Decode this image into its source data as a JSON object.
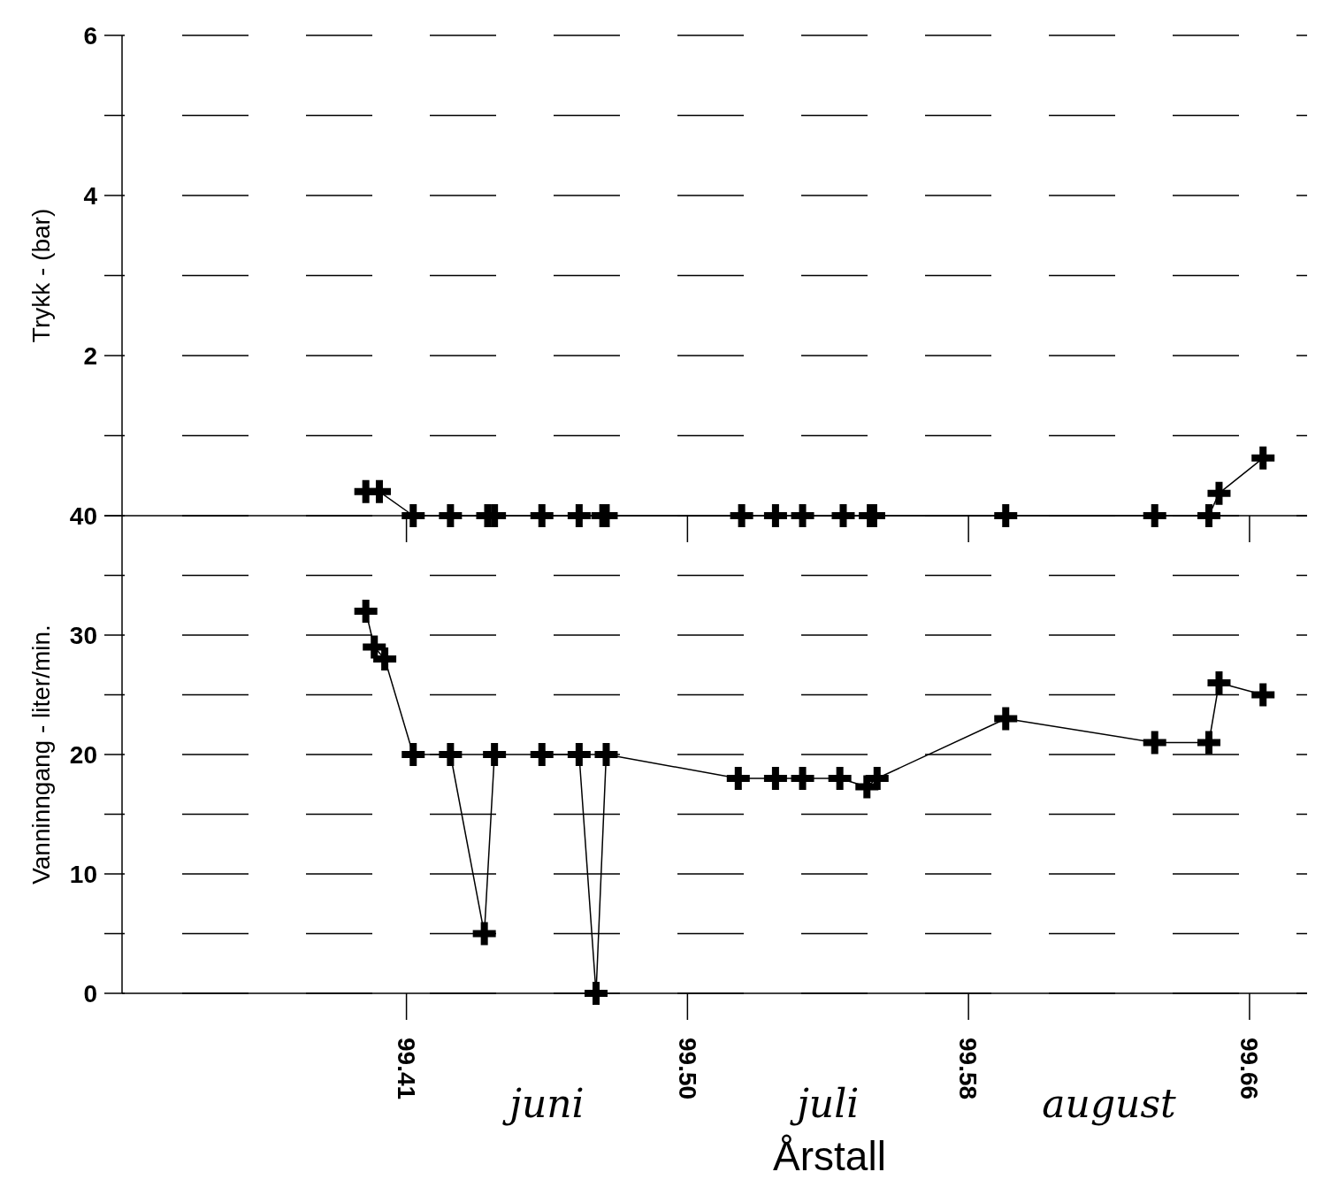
{
  "chart_data": [
    {
      "type": "line",
      "ylabel": "Trykk - (bar)",
      "ylim": [
        0,
        6
      ],
      "yticks": [
        {
          "value": 0,
          "label": null
        },
        {
          "value": 1,
          "label": null
        },
        2,
        {
          "value": 3,
          "label": null
        },
        4,
        {
          "value": 5,
          "label": null
        },
        6
      ],
      "xlim": [
        99.33,
        99.68
      ],
      "xticks": [
        {
          "value": 99.414,
          "label": null
        },
        {
          "value": 99.497,
          "label": null
        },
        {
          "value": 99.58,
          "label": null
        },
        {
          "value": 99.663,
          "label": null
        }
      ],
      "tick_labels": "y",
      "grid": "y",
      "marker": "cross",
      "line_style": "solid",
      "series": [
        {
          "color": "#000000",
          "x": [
            99.402,
            99.406,
            99.416,
            99.427,
            99.438,
            99.44,
            99.454,
            99.465,
            99.472,
            99.473,
            99.513,
            99.523,
            99.531,
            99.543,
            99.551,
            99.552,
            99.591,
            99.635,
            99.651,
            99.654,
            99.667
          ],
          "values": [
            0.3,
            0.3,
            0,
            0,
            0,
            0,
            0,
            0,
            0,
            0,
            0,
            0,
            0,
            0,
            0,
            0,
            0,
            0,
            0,
            0.28,
            0.72
          ]
        }
      ]
    },
    {
      "type": "line",
      "ylabel": "Vanninngang - liter/min.",
      "xlabel": "Årstall",
      "ylim": [
        0,
        40
      ],
      "yticks": [
        0,
        {
          "value": 5,
          "label": null
        },
        10,
        {
          "value": 15,
          "label": null
        },
        20,
        {
          "value": 25,
          "label": null
        },
        30,
        {
          "value": 35,
          "label": null
        },
        40
      ],
      "xlim": [
        99.33,
        99.68
      ],
      "xticks": [
        {
          "value": 99.414,
          "label": "99.41"
        },
        {
          "value": 99.497,
          "label": "99.50"
        },
        {
          "value": 99.58,
          "label": "99.58"
        },
        {
          "value": 99.663,
          "label": "99.66"
        }
      ],
      "grid": "y",
      "marker": "cross",
      "line_style": "solid",
      "annotations": [
        "juni",
        "juli",
        "august"
      ],
      "series": [
        {
          "color": "#000000",
          "x": [
            99.402,
            99.4045,
            99.4076,
            99.416,
            99.427,
            99.437,
            99.44,
            99.454,
            99.465,
            99.47,
            99.473,
            99.512,
            99.523,
            99.531,
            99.542,
            99.55,
            99.553,
            99.591,
            99.635,
            99.651,
            99.654,
            99.667
          ],
          "values": [
            32,
            29,
            28,
            20,
            20,
            5,
            20,
            20,
            20,
            0,
            20,
            18,
            18,
            18,
            18,
            17.3,
            18,
            23,
            21,
            21,
            26,
            25
          ]
        }
      ]
    }
  ]
}
